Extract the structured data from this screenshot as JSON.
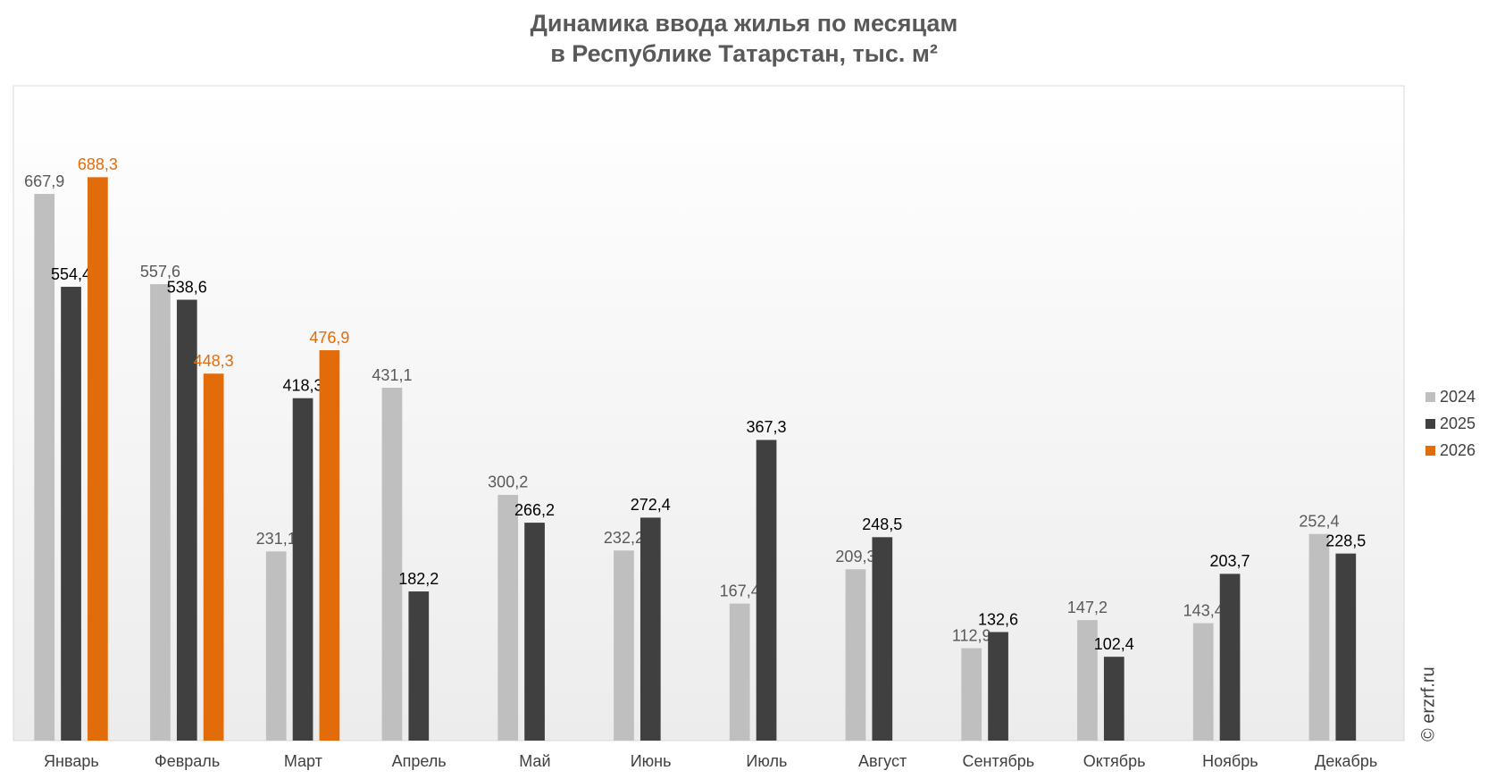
{
  "chart_data": {
    "type": "bar",
    "title": [
      "Динамика ввода жилья по месяцам",
      "в Республике Татарстан, тыс. м²"
    ],
    "categories": [
      "Январь",
      "Февраль",
      "Март",
      "Апрель",
      "Май",
      "Июнь",
      "Июль",
      "Август",
      "Сентябрь",
      "Октябрь",
      "Ноябрь",
      "Декабрь"
    ],
    "series": [
      {
        "name": "2024",
        "color": "#bfbfbf",
        "label_color": "#595959",
        "values": [
          667.9,
          557.6,
          231.1,
          431.1,
          300.2,
          232.2,
          167.4,
          209.3,
          112.9,
          147.2,
          143.4,
          252.4
        ],
        "value_labels": [
          "667,9",
          "557,6",
          "231,1",
          "431,1",
          "300,2",
          "232,2",
          "167,4",
          "209,3",
          "112,9",
          "147,2",
          "143,4",
          "252,4"
        ]
      },
      {
        "name": "2025",
        "color": "#404040",
        "label_color": "#000000",
        "values": [
          554.4,
          538.6,
          418.3,
          182.2,
          266.2,
          272.4,
          367.3,
          248.5,
          132.6,
          102.4,
          203.7,
          228.5
        ],
        "value_labels": [
          "554,4",
          "538,6",
          "418,3",
          "182,2",
          "266,2",
          "272,4",
          "367,3",
          "248,5",
          "132,6",
          "102,4",
          "203,7",
          "228,5"
        ]
      },
      {
        "name": "2026",
        "color": "#e36c0a",
        "label_color": "#e36c0a",
        "values": [
          688.3,
          448.3,
          476.9,
          null,
          null,
          null,
          null,
          null,
          null,
          null,
          null,
          null
        ],
        "value_labels": [
          "688,3",
          "448,3",
          "476,9",
          null,
          null,
          null,
          null,
          null,
          null,
          null,
          null,
          null
        ]
      }
    ],
    "ylim": [
      0,
      800
    ],
    "legend": "right",
    "watermark": "© erzrf.ru"
  }
}
